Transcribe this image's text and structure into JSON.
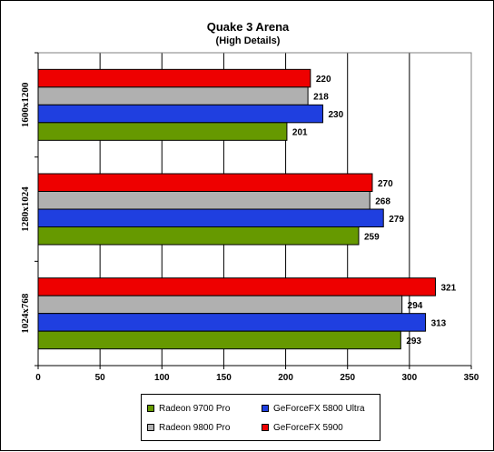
{
  "chart_data": {
    "type": "bar",
    "orientation": "horizontal",
    "title": "Quake 3 Arena",
    "subtitle": "(High Details)",
    "categories": [
      "1600x1200",
      "1280x1024",
      "1024x768"
    ],
    "series": [
      {
        "name": "Radeon 9700 Pro",
        "color": "#669900",
        "values": [
          201,
          259,
          293
        ]
      },
      {
        "name": "GeForceFX 5800 Ultra",
        "color": "#1f3fe0",
        "values": [
          230,
          279,
          313
        ]
      },
      {
        "name": "Radeon 9800 Pro",
        "color": "#b0b0b0",
        "values": [
          218,
          268,
          294
        ]
      },
      {
        "name": "GeForceFX 5900",
        "color": "#ee0000",
        "values": [
          220,
          270,
          321
        ]
      }
    ],
    "bar_stack_order_top_to_bottom": [
      "GeForceFX 5900",
      "Radeon 9800 Pro",
      "GeForceFX 5800 Ultra",
      "Radeon 9700 Pro"
    ],
    "xlim": [
      0,
      350
    ],
    "xticks": [
      0,
      50,
      100,
      150,
      200,
      250,
      300,
      350
    ],
    "grid": "vertical",
    "legend_position": "bottom",
    "plot_background": "#ffffff"
  }
}
